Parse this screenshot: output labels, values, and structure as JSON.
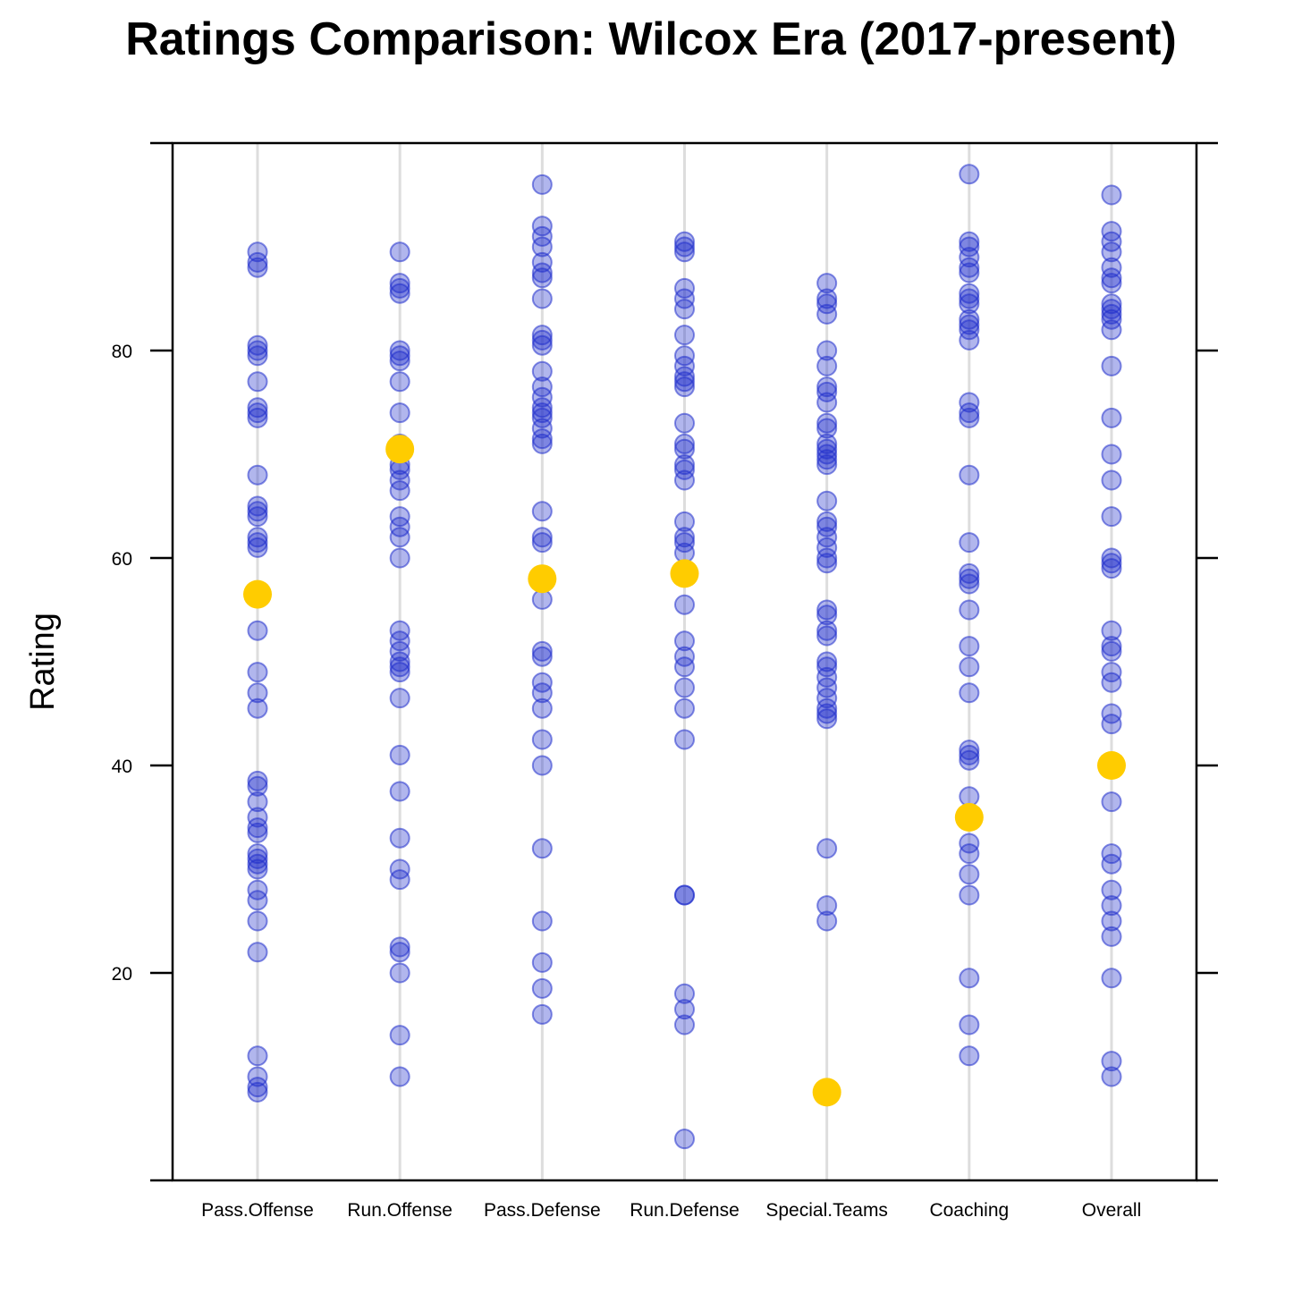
{
  "chart_data": {
    "type": "scatter",
    "title": "Ratings Comparison: Wilcox Era (2017-present)",
    "ylabel": "Rating",
    "xlabel": "",
    "ylim": [
      0,
      100
    ],
    "yticks": [
      20,
      40,
      60,
      80
    ],
    "grid": "vertical",
    "colors": {
      "points": "#1f2ecc",
      "highlight": "#ffcc00",
      "gridline": "#dddddd",
      "axis": "#000000"
    },
    "categories": [
      "Pass.Offense",
      "Run.Offense",
      "Pass.Defense",
      "Run.Defense",
      "Special.Teams",
      "Coaching",
      "Overall"
    ],
    "series": [
      {
        "values": [
          [
            89.5,
            88.5,
            88,
            80.5,
            79.5,
            80,
            77,
            74.5,
            74,
            73.5,
            68,
            65,
            64.5,
            64,
            62,
            61.5,
            61,
            53,
            49,
            47,
            45.5,
            38.5,
            38,
            36.5,
            35,
            34,
            33.5,
            31.5,
            31,
            30.5,
            30,
            28,
            27,
            25,
            22,
            12,
            10,
            9,
            8.5
          ],
          [
            89.5,
            86.5,
            86,
            85.5,
            80,
            79.5,
            79,
            77,
            74,
            71,
            69,
            68.5,
            67.5,
            66.5,
            64,
            63,
            62,
            60,
            53,
            52,
            51,
            50,
            49.5,
            49,
            46.5,
            41,
            37.5,
            33,
            30,
            29,
            22.5,
            22,
            20,
            14,
            10
          ],
          [
            96,
            92,
            91,
            90,
            88.5,
            87.5,
            87,
            85,
            81.5,
            81,
            80.5,
            78,
            76.5,
            75.5,
            74.5,
            74,
            73.5,
            72.5,
            71.5,
            71,
            64.5,
            62,
            61.5,
            56,
            51,
            50.5,
            48,
            47,
            45.5,
            42.5,
            40,
            32,
            25,
            21,
            18.5,
            16
          ],
          [
            90.5,
            90,
            89.5,
            86,
            85,
            84,
            81.5,
            79.5,
            78.5,
            77.5,
            77,
            76.5,
            73,
            71,
            70.5,
            69,
            68.5,
            67.5,
            63.5,
            62,
            61.5,
            60.5,
            55.5,
            52,
            50.5,
            49.5,
            47.5,
            45.5,
            42.5,
            27.5,
            27.5,
            18,
            16.5,
            15,
            4
          ],
          [
            86.5,
            85,
            84.5,
            83.5,
            80,
            78.5,
            76.5,
            76,
            75,
            73,
            72.5,
            71,
            70.5,
            70,
            69.5,
            69,
            65.5,
            63.5,
            63,
            62,
            61,
            60,
            59.5,
            55,
            54.5,
            53,
            52.5,
            50,
            49.5,
            48.5,
            47.5,
            46.5,
            45.5,
            45,
            44.5,
            32,
            26.5,
            25
          ],
          [
            97,
            90.5,
            90,
            89,
            88,
            87.5,
            85.5,
            85,
            84.5,
            83,
            82.5,
            82,
            81,
            75,
            74,
            73.5,
            68,
            61.5,
            58.5,
            58,
            57.5,
            55,
            51.5,
            49.5,
            47,
            41.5,
            41,
            40.5,
            37,
            32.5,
            31.5,
            29.5,
            27.5,
            19.5,
            15,
            12
          ],
          [
            95,
            91.5,
            90.5,
            89.5,
            88,
            87,
            86.5,
            84.5,
            84,
            83.5,
            83,
            82,
            78.5,
            73.5,
            70,
            67.5,
            64,
            60,
            59.5,
            59,
            53,
            51.5,
            51,
            49,
            48,
            45,
            44,
            36.5,
            31.5,
            30.5,
            28,
            26.5,
            25,
            23.5,
            19.5,
            11.5,
            10
          ]
        ]
      },
      {
        "values": [
          56.5,
          70.5,
          58,
          58.5,
          8.5,
          35,
          40
        ]
      }
    ]
  }
}
